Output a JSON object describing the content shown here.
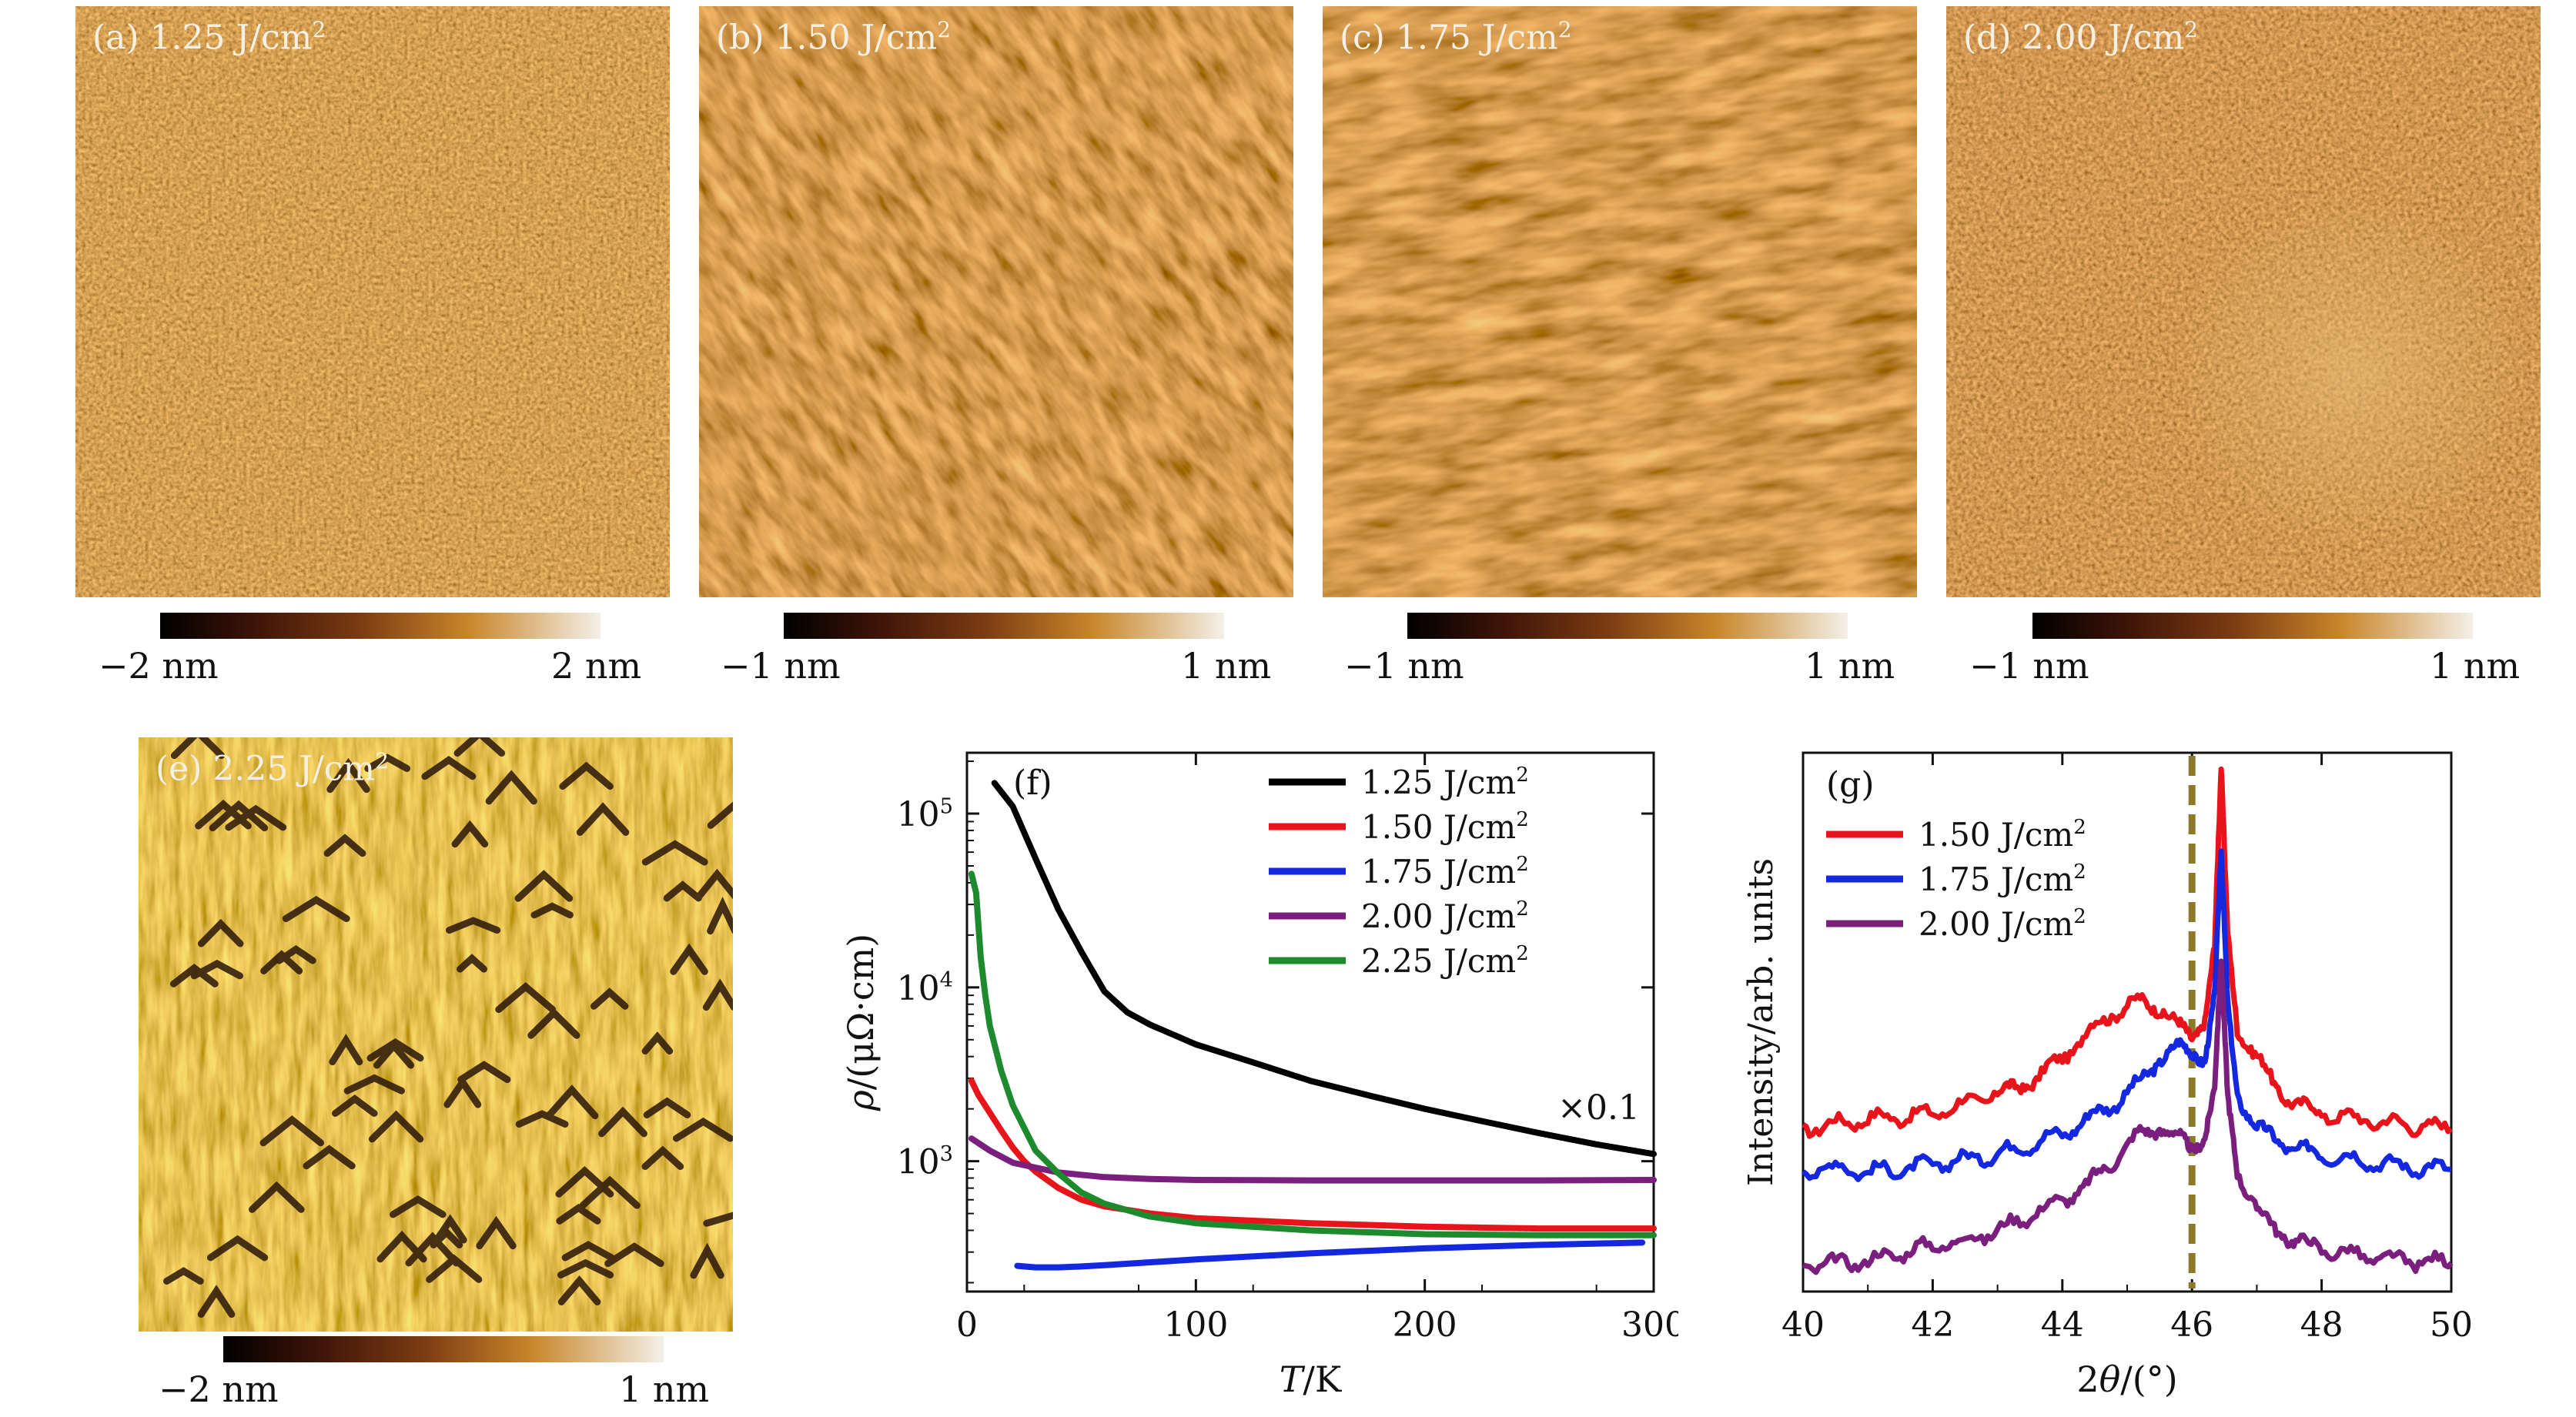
{
  "panels": [
    {
      "id": "a",
      "label": "(a) 1.25 J/cm",
      "sup": "2",
      "cbar_min": "−2 nm",
      "cbar_max": "2 nm"
    },
    {
      "id": "b",
      "label": "(b) 1.50 J/cm",
      "sup": "2",
      "cbar_min": "−1 nm",
      "cbar_max": "1 nm"
    },
    {
      "id": "c",
      "label": "(c) 1.75 J/cm",
      "sup": "2",
      "cbar_min": "−1 nm",
      "cbar_max": "1 nm"
    },
    {
      "id": "d",
      "label": "(d) 2.00 J/cm",
      "sup": "2",
      "cbar_min": "−1 nm",
      "cbar_max": "1 nm"
    },
    {
      "id": "e",
      "label": "(e) 2.25 J/cm",
      "sup": "2",
      "cbar_min": "−2 nm",
      "cbar_max": "1 nm"
    }
  ],
  "colors": {
    "afm_dark": "#7a3a12",
    "afm_mid": "#b86a22",
    "afm_light": "#e8c27a",
    "afm_e": "#c99a34"
  },
  "chart_data": [
    {
      "id": "f",
      "type": "line",
      "panel_label": "(f)",
      "xlabel_italic": "T",
      "xlabel_rest": "/K",
      "ylabel_italic": "ρ",
      "ylabel_rest": "/(μΩ·cm)",
      "xlim": [
        0,
        300
      ],
      "ylim_log10": [
        2.25,
        5.35
      ],
      "yscale": "log",
      "xticks": [
        "0",
        "100",
        "200",
        "300"
      ],
      "yticks": [
        {
          "base": "10",
          "exp": "3"
        },
        {
          "base": "10",
          "exp": "4"
        },
        {
          "base": "10",
          "exp": "5"
        }
      ],
      "annotation": "×0.1",
      "legend_position": "top-right",
      "series": [
        {
          "name": "1.25 J/cm",
          "sup": "2",
          "color": "#000000",
          "x": [
            12,
            20,
            30,
            40,
            50,
            60,
            70,
            80,
            100,
            125,
            150,
            175,
            200,
            225,
            250,
            275,
            300
          ],
          "y": [
            150000,
            110000,
            55000,
            28000,
            16000,
            9500,
            7200,
            6100,
            4700,
            3700,
            2900,
            2400,
            2000,
            1700,
            1450,
            1250,
            1100
          ]
        },
        {
          "name": "1.50 J/cm",
          "sup": "2",
          "color": "#e8141c",
          "x": [
            2,
            5,
            10,
            15,
            20,
            25,
            30,
            40,
            50,
            60,
            80,
            100,
            150,
            200,
            250,
            300
          ],
          "y": [
            2900,
            2400,
            1900,
            1500,
            1200,
            1000,
            870,
            700,
            600,
            550,
            500,
            470,
            440,
            420,
            410,
            410
          ]
        },
        {
          "name": "1.75 J/cm",
          "sup": "2",
          "color": "#1428e0",
          "x": [
            22,
            30,
            40,
            50,
            60,
            80,
            100,
            150,
            200,
            250,
            295
          ],
          "y": [
            250,
            245,
            245,
            248,
            252,
            262,
            272,
            295,
            315,
            330,
            340
          ]
        },
        {
          "name": "2.00 J/cm",
          "sup": "2",
          "color": "#7b1f7e",
          "x": [
            2,
            10,
            20,
            40,
            60,
            80,
            100,
            150,
            200,
            250,
            300
          ],
          "y": [
            1350,
            1150,
            980,
            860,
            810,
            790,
            780,
            775,
            775,
            775,
            780
          ]
        },
        {
          "name": "2.25 J/cm",
          "sup": "2",
          "color": "#1e8a2e",
          "x": [
            2,
            4,
            6,
            8,
            10,
            15,
            20,
            30,
            40,
            50,
            60,
            80,
            100,
            150,
            200,
            250,
            300
          ],
          "y": [
            45000,
            35000,
            15000,
            9000,
            6000,
            3300,
            2100,
            1150,
            850,
            660,
            570,
            480,
            440,
            400,
            380,
            375,
            375
          ]
        }
      ]
    },
    {
      "id": "g",
      "type": "line",
      "panel_label": "(g)",
      "xlabel_prefix": "2",
      "xlabel_italic": "θ",
      "xlabel_rest": "/(°)",
      "ylabel": "Intensity/arb. units",
      "xlim": [
        40,
        50
      ],
      "xticks": [
        "40",
        "42",
        "44",
        "46",
        "48",
        "50"
      ],
      "reference_line_x": 46,
      "reference_line_color": "#8b7a2a",
      "legend_position": "top-left",
      "series": [
        {
          "name": "1.50 J/cm",
          "sup": "2",
          "color": "#e8141c",
          "x": [
            40,
            40.5,
            41,
            41.5,
            42,
            42.5,
            43,
            43.3,
            43.6,
            44,
            44.4,
            44.8,
            45.2,
            45.5,
            45.8,
            46,
            46.2,
            46.35,
            46.45,
            46.55,
            46.7,
            47,
            47.3,
            47.6,
            48,
            48.5,
            49,
            49.5,
            50
          ],
          "y": [
            1.6,
            1.65,
            1.7,
            1.72,
            1.75,
            1.85,
            1.95,
            2.0,
            2.1,
            2.3,
            2.55,
            2.75,
            2.85,
            2.8,
            2.6,
            2.5,
            2.7,
            3.4,
            5.1,
            3.5,
            2.6,
            2.3,
            2.0,
            1.85,
            1.75,
            1.7,
            1.66,
            1.63,
            1.6
          ]
        },
        {
          "name": "1.75 J/cm",
          "sup": "2",
          "color": "#1428e0",
          "x": [
            40,
            40.5,
            41,
            41.5,
            42,
            42.5,
            43,
            43.5,
            44,
            44.4,
            44.8,
            45.2,
            45.5,
            45.8,
            46,
            46.2,
            46.35,
            46.45,
            46.55,
            46.7,
            47,
            47.3,
            47.6,
            48,
            48.5,
            49,
            49.5,
            50
          ],
          "y": [
            1.2,
            1.22,
            1.18,
            1.2,
            1.25,
            1.3,
            1.35,
            1.45,
            1.55,
            1.7,
            1.85,
            2.05,
            2.3,
            2.4,
            2.35,
            2.3,
            2.9,
            4.3,
            2.8,
            1.95,
            1.6,
            1.5,
            1.4,
            1.35,
            1.3,
            1.25,
            1.22,
            1.2
          ]
        },
        {
          "name": "2.00 J/cm",
          "sup": "2",
          "color": "#7b1f7e",
          "x": [
            40,
            40.5,
            41,
            41.5,
            42,
            42.5,
            43,
            43.5,
            44,
            44.4,
            44.8,
            45.2,
            45.5,
            45.8,
            46,
            46.2,
            46.35,
            46.45,
            46.55,
            46.7,
            47,
            47.3,
            47.6,
            48,
            48.5,
            49,
            49.5,
            50
          ],
          "y": [
            0.25,
            0.28,
            0.3,
            0.38,
            0.45,
            0.5,
            0.6,
            0.75,
            0.9,
            1.05,
            1.3,
            1.55,
            1.62,
            1.5,
            1.4,
            1.55,
            2.0,
            3.2,
            1.9,
            1.2,
            0.8,
            0.6,
            0.5,
            0.42,
            0.36,
            0.32,
            0.3,
            0.28
          ]
        }
      ]
    }
  ]
}
